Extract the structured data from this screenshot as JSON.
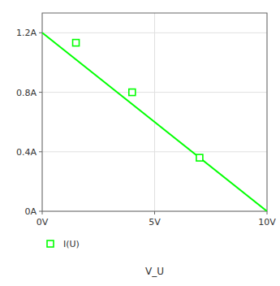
{
  "chart_data": {
    "type": "line",
    "xlabel": "V_U",
    "series": [
      {
        "x": [
          0,
          10
        ],
        "values": [
          1.2,
          0.0
        ],
        "color": "#00ff00",
        "marker": "none",
        "line_style": "solid"
      },
      {
        "name": "I(U)",
        "x": [
          1.5,
          4.0,
          7.0
        ],
        "values": [
          1.133,
          0.8,
          0.36
        ],
        "color": "#00ff00",
        "marker": "square",
        "line_style": "none"
      }
    ],
    "xlim": [
      0,
      10
    ],
    "ylim": [
      0,
      1.333
    ],
    "xticks": [
      {
        "value": 0,
        "label": "0V"
      },
      {
        "value": 5,
        "label": "5V"
      },
      {
        "value": 10,
        "label": "10V"
      }
    ],
    "yticks": [
      {
        "value": 0,
        "label": "0A"
      },
      {
        "value": 0.4,
        "label": "0.4A"
      },
      {
        "value": 0.8,
        "label": "0.8A"
      },
      {
        "value": 1.2,
        "label": "1.2A"
      }
    ],
    "grid": true,
    "legend": "bottom"
  }
}
